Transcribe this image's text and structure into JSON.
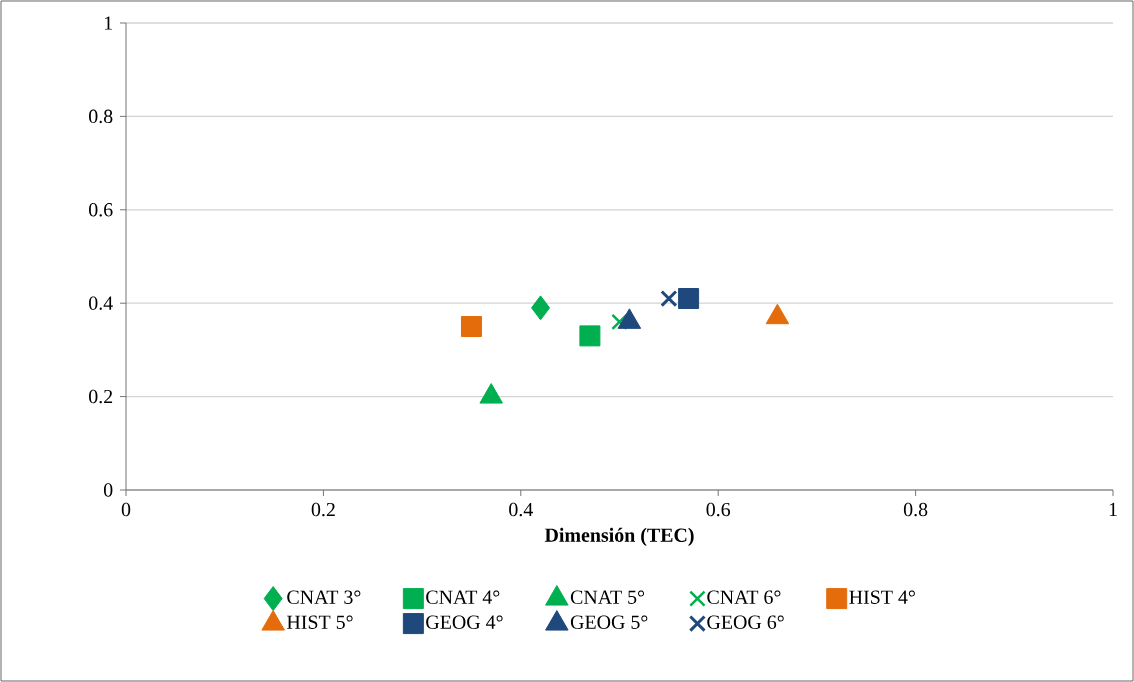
{
  "chart_data": {
    "type": "scatter",
    "xlabel": "Dimensión (TEC)",
    "xlim": [
      0,
      1
    ],
    "ylim": [
      0,
      1
    ],
    "xticks": [
      0,
      0.2,
      0.4,
      0.6,
      0.8,
      1
    ],
    "yticks": [
      0,
      0.2,
      0.4,
      0.6,
      0.8,
      1
    ],
    "grid": "y",
    "legend": "bottom",
    "series": [
      {
        "name": "CNAT 3°",
        "color": "#00b050",
        "marker": "diamond",
        "x": [
          0.42
        ],
        "values": [
          0.39
        ]
      },
      {
        "name": "CNAT 4°",
        "color": "#00b050",
        "marker": "square",
        "x": [
          0.47
        ],
        "values": [
          0.33
        ]
      },
      {
        "name": "CNAT 5°",
        "color": "#00b050",
        "marker": "triangle",
        "x": [
          0.37
        ],
        "values": [
          0.2
        ]
      },
      {
        "name": "CNAT 6°",
        "color": "#00b050",
        "marker": "cross",
        "x": [
          0.5
        ],
        "values": [
          0.36
        ]
      },
      {
        "name": "HIST 4°",
        "color": "#e46c0a",
        "marker": "square",
        "x": [
          0.35
        ],
        "values": [
          0.35
        ]
      },
      {
        "name": "HIST 5°",
        "color": "#e46c0a",
        "marker": "triangle",
        "x": [
          0.66
        ],
        "values": [
          0.37
        ]
      },
      {
        "name": "GEOG 4°",
        "color": "#1f497d",
        "marker": "square",
        "x": [
          0.57
        ],
        "values": [
          0.41
        ]
      },
      {
        "name": "GEOG 5°",
        "color": "#1f497d",
        "marker": "triangle",
        "x": [
          0.51
        ],
        "values": [
          0.36
        ]
      },
      {
        "name": "GEOG 6°",
        "color": "#1f497d",
        "marker": "cross",
        "x": [
          0.55
        ],
        "values": [
          0.41
        ]
      }
    ]
  }
}
